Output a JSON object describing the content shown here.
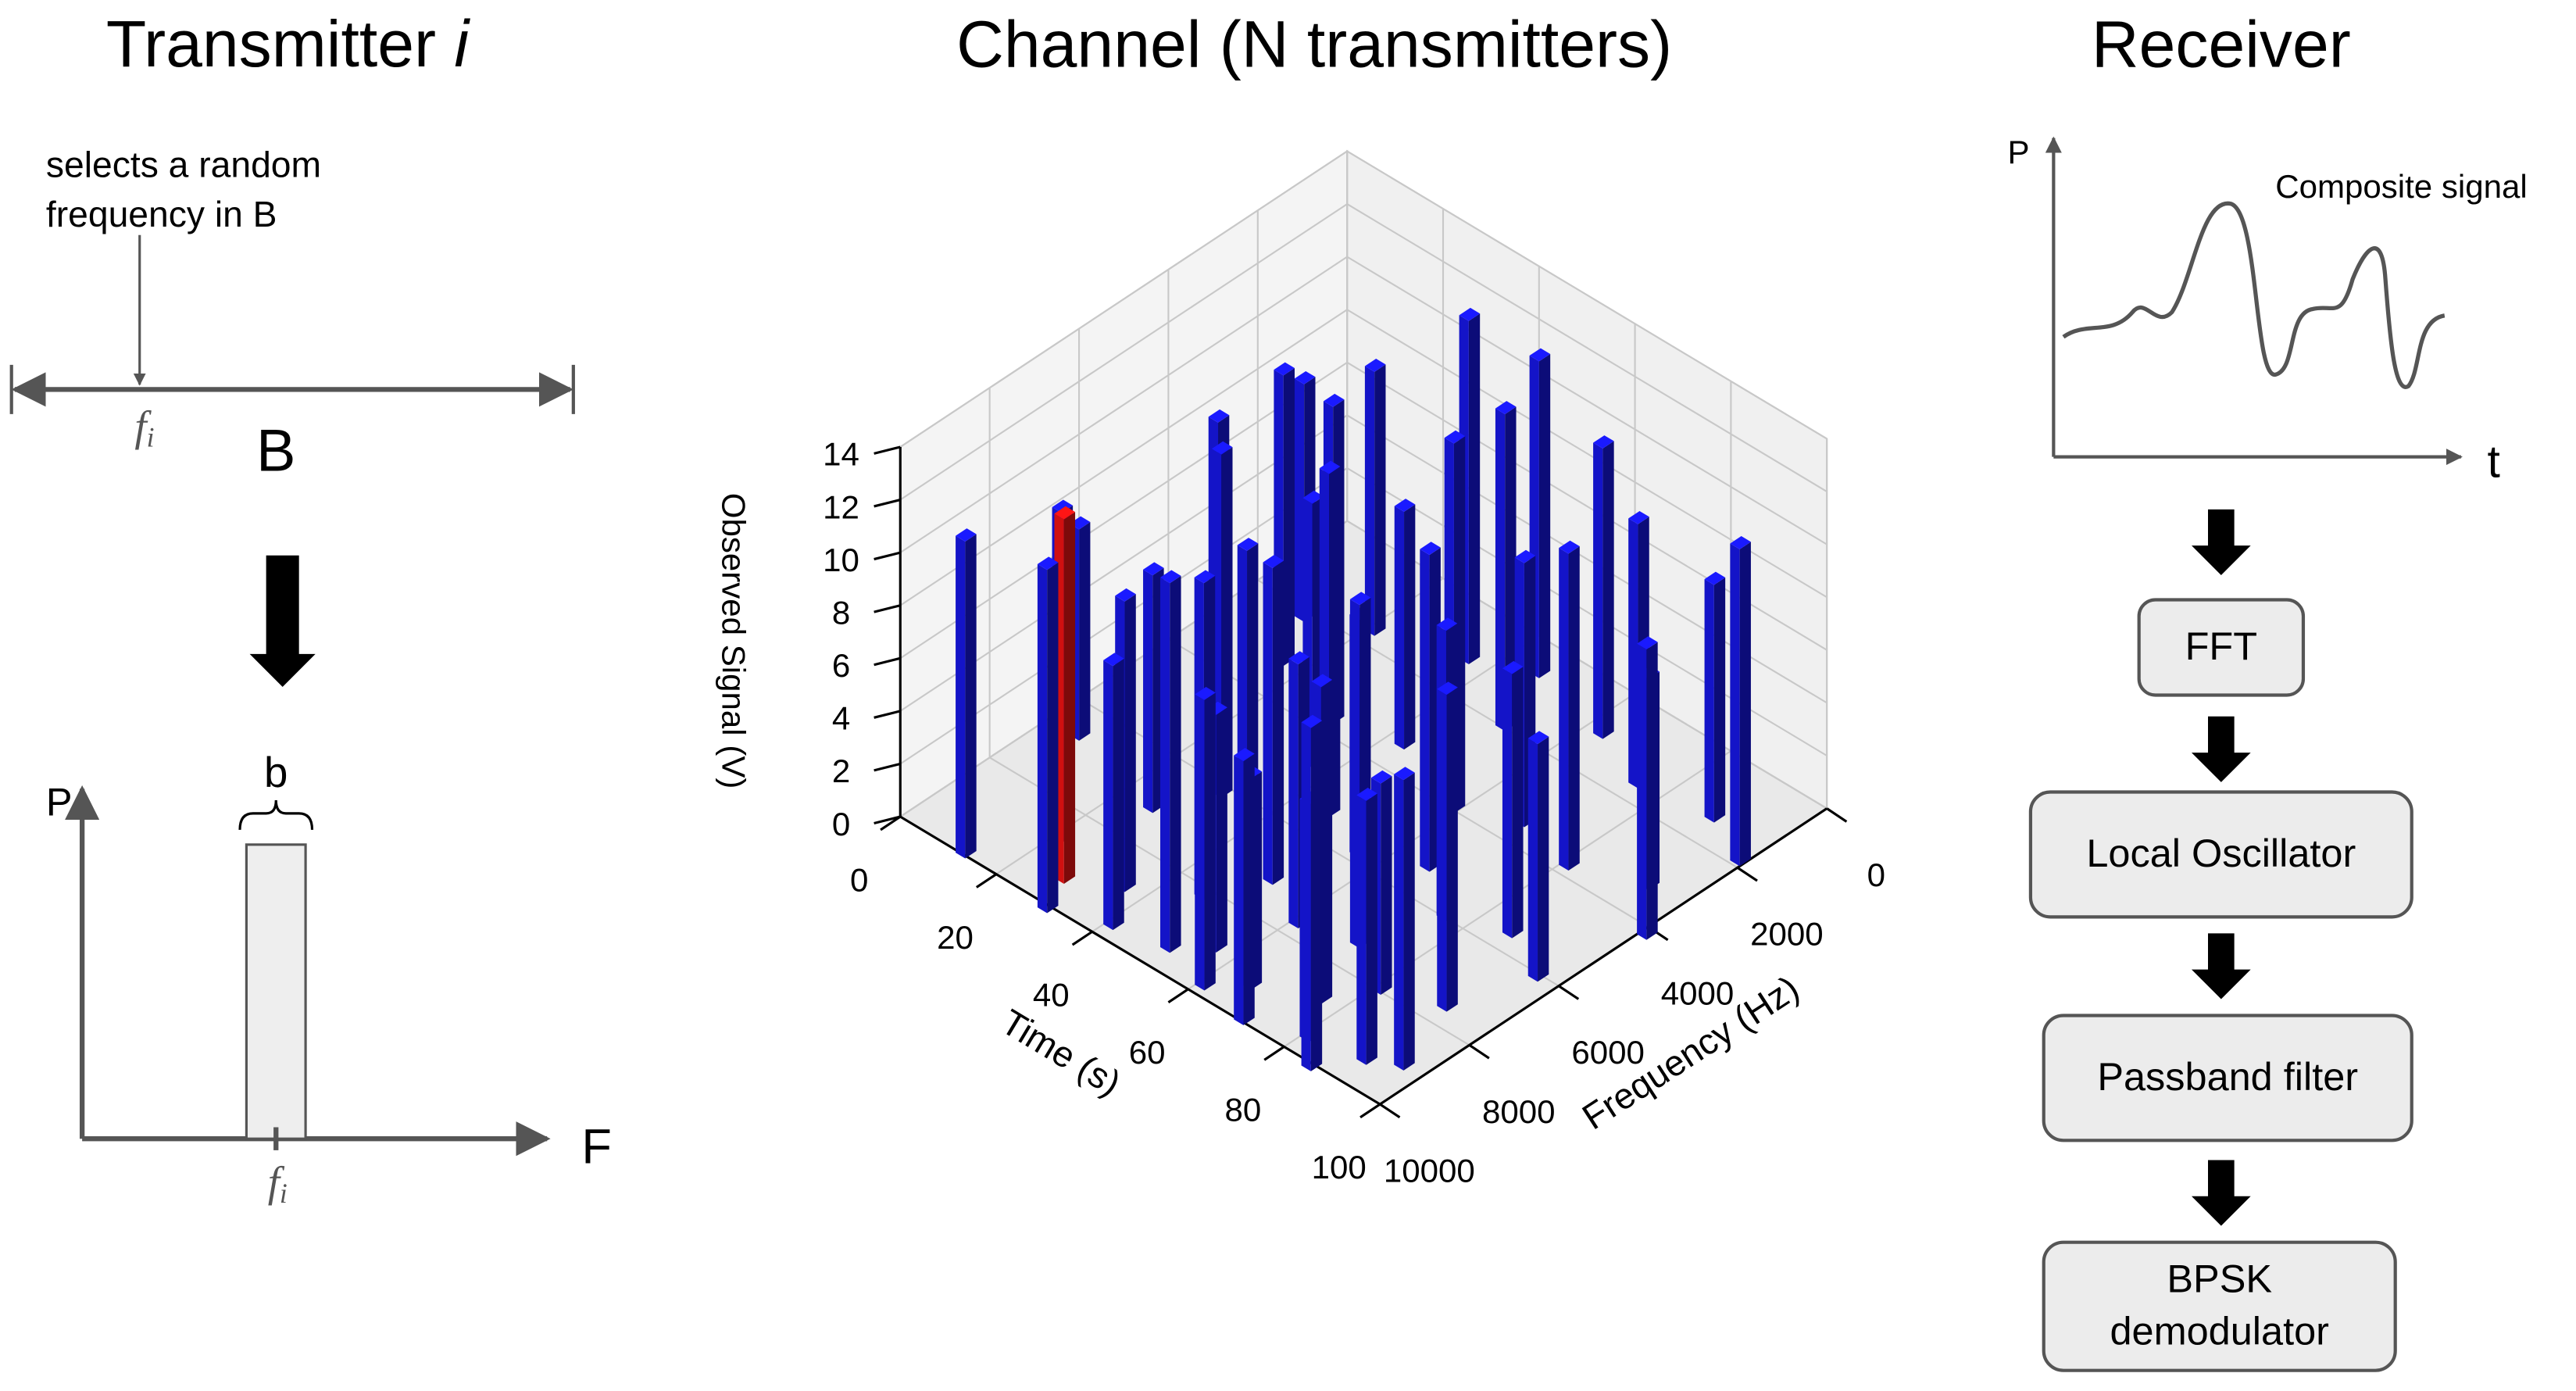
{
  "transmitter": {
    "title": "Transmitter",
    "title_index": "i",
    "annotation": [
      "selects a random",
      "frequency in B"
    ],
    "frequency_label": {
      "symbol": "f",
      "subscript": "i"
    },
    "band_label": "B",
    "power_axis": "P",
    "frequency_axis": "F",
    "bandwidth_label": "b"
  },
  "chart_data": {
    "type": "bar3d",
    "title": "Channel (N transmitters)",
    "xlabel": "Time (s)",
    "ylabel": "Frequency (Hz)",
    "zlabel": "Observed Signal (V)",
    "xlim": [
      0,
      100
    ],
    "xticks": [
      0,
      20,
      40,
      60,
      80,
      100
    ],
    "ylim": [
      0,
      10000
    ],
    "yticks": [
      0,
      2000,
      4000,
      6000,
      8000,
      10000
    ],
    "zlim": [
      0,
      14
    ],
    "zticks": [
      0,
      2,
      4,
      6,
      8,
      10,
      12,
      14
    ],
    "grid": true,
    "series": [
      {
        "color": "#1414c8",
        "x": [
          12,
          30,
          20,
          35,
          40,
          25,
          45,
          50,
          55,
          60,
          65,
          70,
          75,
          80,
          85,
          90,
          95,
          30,
          40,
          50,
          60,
          70,
          80,
          90,
          20,
          35,
          45,
          55,
          65,
          75,
          85,
          95,
          15,
          30,
          42,
          58,
          68,
          80,
          92,
          20,
          35,
          50,
          62,
          74,
          88,
          98,
          45,
          10,
          100,
          5
        ],
        "y": [
          9800,
          9900,
          8500,
          8700,
          9500,
          7000,
          8000,
          9300,
          8800,
          9600,
          9100,
          9800,
          8600,
          9400,
          9900,
          9200,
          8900,
          6000,
          6500,
          7000,
          7500,
          7200,
          7800,
          7400,
          5000,
          4500,
          5200,
          5600,
          5100,
          5800,
          5400,
          5900,
          3000,
          3500,
          3200,
          3800,
          3300,
          3600,
          3100,
          1500,
          1000,
          1800,
          900,
          1400,
          1200,
          1700,
          500,
          2000,
          4000,
          6500
        ],
        "values": [
          12,
          13,
          12.5,
          11,
          10,
          9,
          12,
          14,
          9,
          11,
          8,
          10,
          12,
          9,
          13,
          10,
          11,
          13,
          11,
          12,
          10,
          13,
          8,
          12,
          12,
          10,
          13,
          9,
          12,
          11,
          10,
          9,
          11,
          12,
          9,
          14,
          10,
          12,
          8,
          10,
          13,
          12,
          11,
          10,
          9,
          12,
          12,
          9,
          11,
          8
        ]
      },
      {
        "color": "#d01010",
        "x": [
          27
        ],
        "y": [
          9200
        ],
        "values": [
          13.8
        ]
      }
    ]
  },
  "receiver": {
    "title": "Receiver",
    "power_axis": "P",
    "time_axis": "t",
    "signal_label": "Composite signal",
    "blocks": [
      [
        "FFT"
      ],
      [
        "Local Oscillator"
      ],
      [
        "Passband filter"
      ],
      [
        "BPSK",
        "demodulator"
      ]
    ]
  }
}
